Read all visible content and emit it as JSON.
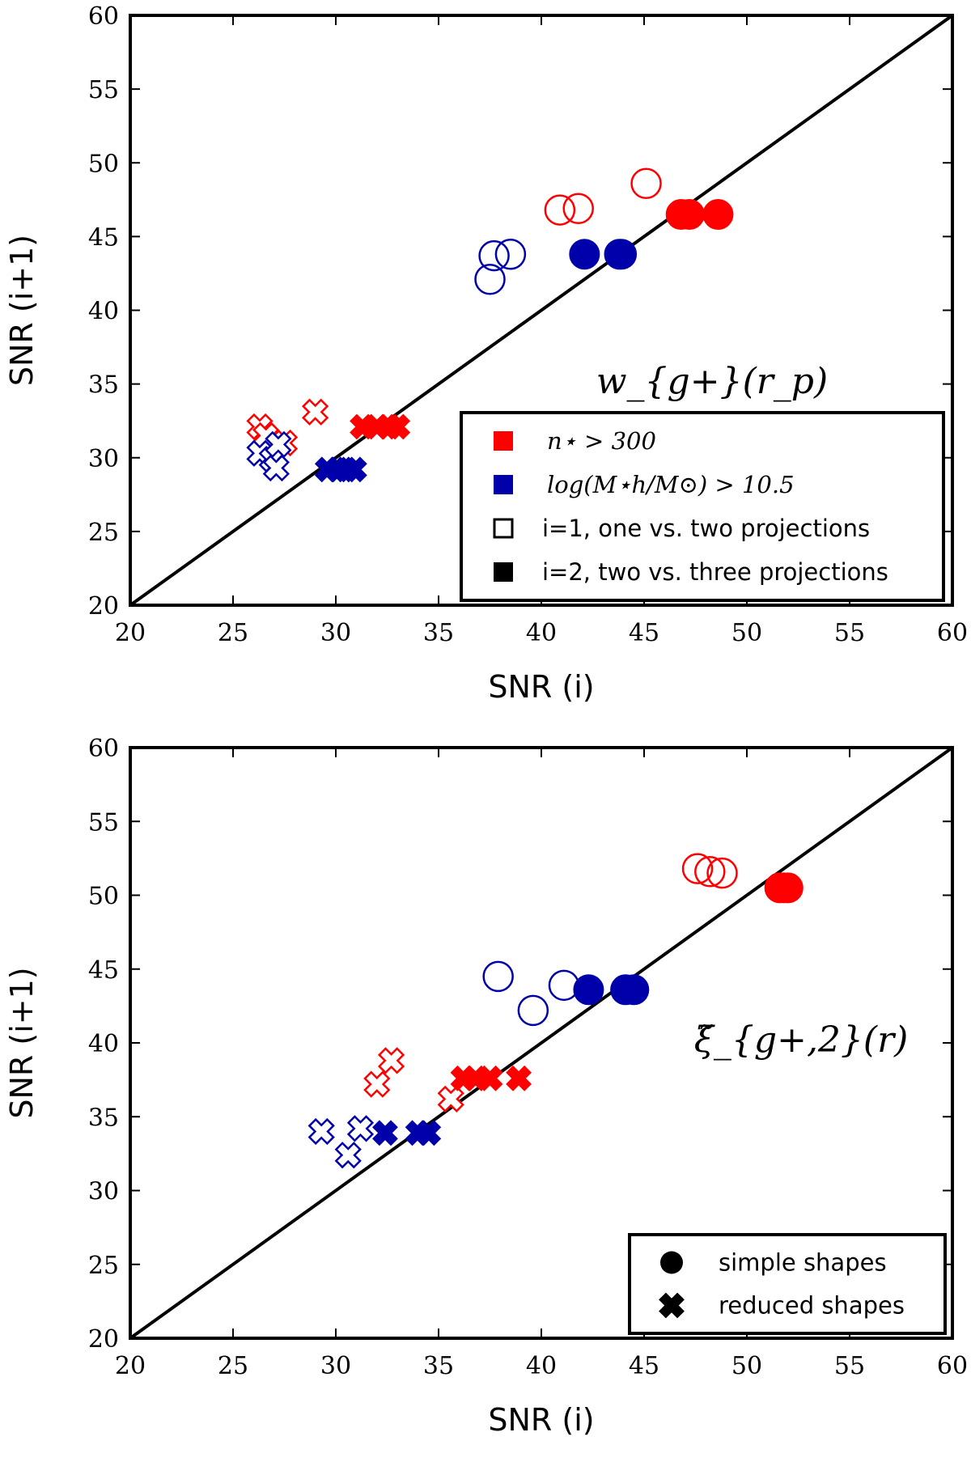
{
  "colors": {
    "red": "#ff0000",
    "blue": "#0000aa",
    "black": "#000000"
  },
  "chart_data": [
    {
      "type": "scatter",
      "xlabel": "SNR (i)",
      "ylabel": "SNR (i+1)",
      "xlim": [
        20,
        60
      ],
      "ylim": [
        20,
        60
      ],
      "xticks": [
        "20",
        "25",
        "30",
        "35",
        "40",
        "45",
        "50",
        "55",
        "60"
      ],
      "yticks": [
        "20",
        "25",
        "30",
        "35",
        "40",
        "45",
        "50",
        "55",
        "60"
      ],
      "reference_line": "y = x",
      "annotation": "w_{g+}(r_p)",
      "legend": {
        "placement": "lower-right",
        "entries": [
          {
            "label": "n⋆ > 300",
            "marker": "square-filled",
            "color": "red"
          },
          {
            "label": "log(M⋆h/M⊙) > 10.5",
            "marker": "square-filled",
            "color": "blue"
          },
          {
            "label": "i=1, one vs. two projections",
            "marker": "square-open",
            "color": "black"
          },
          {
            "label": "i=2, two vs. three projections",
            "marker": "square-filled",
            "color": "black"
          }
        ]
      },
      "series": [
        {
          "color": "red",
          "shape": "circle",
          "fill": "open",
          "points": [
            [
              40.9,
              46.8
            ],
            [
              41.8,
              46.9
            ],
            [
              45.1,
              48.6
            ]
          ]
        },
        {
          "color": "red",
          "shape": "circle",
          "fill": "filled",
          "points": [
            [
              46.8,
              46.5
            ],
            [
              47.2,
              46.5
            ],
            [
              48.6,
              46.5
            ]
          ]
        },
        {
          "color": "blue",
          "shape": "circle",
          "fill": "open",
          "points": [
            [
              37.5,
              42.1
            ],
            [
              37.7,
              43.7
            ],
            [
              38.5,
              43.8
            ]
          ]
        },
        {
          "color": "blue",
          "shape": "circle",
          "fill": "filled",
          "points": [
            [
              42.1,
              43.8
            ],
            [
              43.8,
              43.8
            ],
            [
              43.9,
              43.8
            ]
          ]
        },
        {
          "color": "red",
          "shape": "cross",
          "fill": "open",
          "points": [
            [
              26.3,
              32.1
            ],
            [
              26.6,
              31.5
            ],
            [
              27.5,
              31.0
            ],
            [
              29.0,
              33.1
            ]
          ]
        },
        {
          "color": "blue",
          "shape": "cross",
          "fill": "open",
          "points": [
            [
              26.3,
              30.3
            ],
            [
              26.9,
              29.9
            ],
            [
              27.1,
              29.3
            ],
            [
              27.2,
              30.9
            ]
          ]
        },
        {
          "color": "red",
          "shape": "cross",
          "fill": "filled",
          "points": [
            [
              31.3,
              32.1
            ],
            [
              32.0,
              32.1
            ],
            [
              32.6,
              32.1
            ],
            [
              33.0,
              32.1
            ]
          ]
        },
        {
          "color": "blue",
          "shape": "cross",
          "fill": "filled",
          "points": [
            [
              29.6,
              29.2
            ],
            [
              30.1,
              29.2
            ],
            [
              30.5,
              29.2
            ],
            [
              30.9,
              29.2
            ]
          ]
        }
      ]
    },
    {
      "type": "scatter",
      "xlabel": "SNR (i)",
      "ylabel": "SNR (i+1)",
      "xlim": [
        20,
        60
      ],
      "ylim": [
        20,
        60
      ],
      "xticks": [
        "20",
        "25",
        "30",
        "35",
        "40",
        "45",
        "50",
        "55",
        "60"
      ],
      "yticks": [
        "20",
        "25",
        "30",
        "35",
        "40",
        "45",
        "50",
        "55",
        "60"
      ],
      "reference_line": "y = x",
      "annotation": "ξ̃_{g+,2}(r)",
      "legend": {
        "placement": "lower-right",
        "entries": [
          {
            "label": "simple shapes",
            "marker": "circle-filled",
            "color": "black"
          },
          {
            "label": "reduced shapes",
            "marker": "cross-filled",
            "color": "black"
          }
        ]
      },
      "series": [
        {
          "color": "red",
          "shape": "circle",
          "fill": "open",
          "points": [
            [
              47.6,
              51.8
            ],
            [
              48.2,
              51.6
            ],
            [
              48.8,
              51.5
            ]
          ]
        },
        {
          "color": "red",
          "shape": "circle",
          "fill": "filled",
          "points": [
            [
              51.6,
              50.5
            ],
            [
              51.8,
              50.5
            ],
            [
              52.0,
              50.5
            ]
          ]
        },
        {
          "color": "blue",
          "shape": "circle",
          "fill": "open",
          "points": [
            [
              37.9,
              44.5
            ],
            [
              39.6,
              42.2
            ],
            [
              41.1,
              43.9
            ]
          ]
        },
        {
          "color": "blue",
          "shape": "circle",
          "fill": "filled",
          "points": [
            [
              42.3,
              43.6
            ],
            [
              44.1,
              43.6
            ],
            [
              44.5,
              43.6
            ]
          ]
        },
        {
          "color": "red",
          "shape": "cross",
          "fill": "open",
          "points": [
            [
              32.0,
              37.2
            ],
            [
              32.7,
              38.8
            ],
            [
              35.6,
              36.2
            ]
          ]
        },
        {
          "color": "blue",
          "shape": "cross",
          "fill": "open",
          "points": [
            [
              29.3,
              34.0
            ],
            [
              30.6,
              32.4
            ],
            [
              31.2,
              34.2
            ]
          ]
        },
        {
          "color": "red",
          "shape": "cross",
          "fill": "filled",
          "points": [
            [
              36.2,
              37.6
            ],
            [
              36.8,
              37.6
            ],
            [
              37.5,
              37.6
            ],
            [
              38.9,
              37.6
            ]
          ]
        },
        {
          "color": "blue",
          "shape": "cross",
          "fill": "filled",
          "points": [
            [
              32.4,
              33.9
            ],
            [
              34.0,
              33.9
            ],
            [
              34.5,
              33.9
            ]
          ]
        }
      ]
    }
  ]
}
